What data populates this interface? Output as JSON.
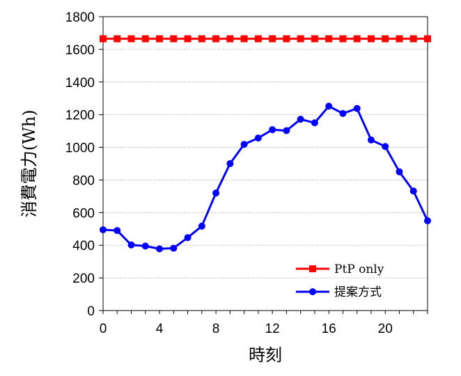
{
  "chart_data": {
    "type": "line",
    "title": "",
    "xlabel": "時刻",
    "ylabel": "消費電力(Wh)",
    "xlim": [
      0,
      23
    ],
    "ylim": [
      0,
      1800
    ],
    "x_ticks": [
      0,
      4,
      8,
      12,
      16,
      20
    ],
    "x_tick_labels": [
      "0",
      "4",
      "8",
      "12",
      "16",
      "20"
    ],
    "y_ticks": [
      0,
      200,
      400,
      600,
      800,
      1000,
      1200,
      1400,
      1600,
      1800
    ],
    "y_tick_labels": [
      "0",
      "200",
      "400",
      "600",
      "800",
      "1000",
      "1200",
      "1400",
      "1600",
      "1800"
    ],
    "grid": "horizontal dotted",
    "legend_position": "bottom-right",
    "x": [
      0,
      1,
      2,
      3,
      4,
      5,
      6,
      7,
      8,
      9,
      10,
      11,
      12,
      13,
      14,
      15,
      16,
      17,
      18,
      19,
      20,
      21,
      22,
      23
    ],
    "series": [
      {
        "name": "PtP only",
        "color": "#ff0000",
        "marker": "square",
        "values": [
          1665,
          1665,
          1665,
          1665,
          1665,
          1665,
          1665,
          1665,
          1665,
          1665,
          1665,
          1665,
          1665,
          1665,
          1665,
          1665,
          1665,
          1665,
          1665,
          1665,
          1665,
          1665,
          1665,
          1665
        ]
      },
      {
        "name": "提案方式",
        "color": "#0000ff",
        "marker": "circle",
        "values": [
          495,
          490,
          402,
          395,
          378,
          382,
          447,
          517,
          720,
          900,
          1018,
          1057,
          1108,
          1102,
          1172,
          1150,
          1252,
          1207,
          1238,
          1045,
          1005,
          850,
          732,
          550
        ]
      }
    ]
  }
}
